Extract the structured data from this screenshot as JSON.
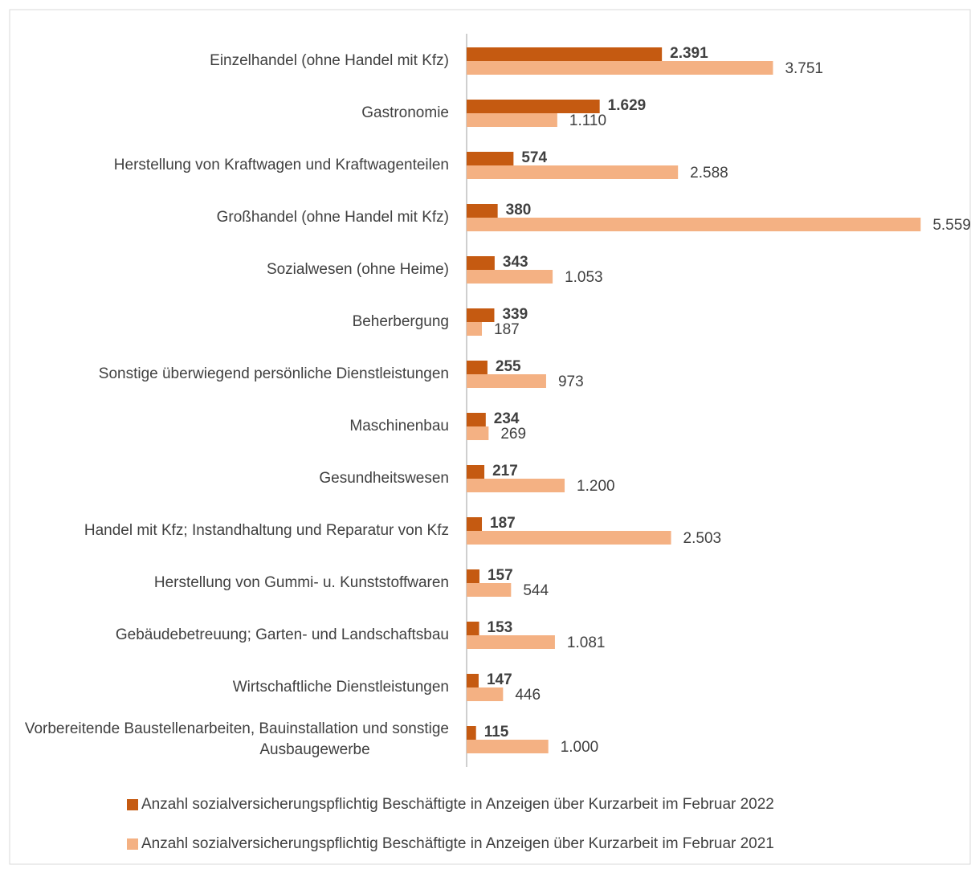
{
  "chart_data": {
    "type": "bar",
    "orientation": "horizontal",
    "categories": [
      "Einzelhandel (ohne Handel mit Kfz)",
      "Gastronomie",
      "Herstellung von Kraftwagen und Kraftwagenteilen",
      "Großhandel (ohne Handel mit Kfz)",
      "Sozialwesen (ohne Heime)",
      "Beherbergung",
      "Sonstige überwiegend persönliche Dienstleistungen",
      "Maschinenbau",
      "Gesundheitswesen",
      "Handel mit Kfz; Instandhaltung und Reparatur von Kfz",
      "Herstellung von Gummi- u. Kunststoffwaren",
      "Gebäudebetreuung; Garten- und Landschaftsbau",
      "Wirtschaftliche Dienstleistungen",
      "Vorbereitende Baustellenarbeiten, Bauinstallation und sonstige Ausbaugewerbe"
    ],
    "series": [
      {
        "name": "Anzahl sozialversicherungspflichtig Beschäftigte in Anzeigen über Kurzarbeit im Februar 2022",
        "color": "#c55a11",
        "values": [
          2391,
          1629,
          574,
          380,
          343,
          339,
          255,
          234,
          217,
          187,
          157,
          153,
          147,
          115
        ],
        "value_labels": [
          "2.391",
          "1.629",
          "574",
          "380",
          "343",
          "339",
          "255",
          "234",
          "217",
          "187",
          "157",
          "153",
          "147",
          "115"
        ]
      },
      {
        "name": "Anzahl sozialversicherungspflichtig Beschäftigte in Anzeigen über Kurzarbeit im Februar 2021",
        "color": "#f4b183",
        "values": [
          3751,
          1110,
          2588,
          5559,
          1053,
          187,
          973,
          269,
          1200,
          2503,
          544,
          1081,
          446,
          1000
        ],
        "value_labels": [
          "3.751",
          "1.110",
          "2.588",
          "5.559",
          "1.053",
          "187",
          "973",
          "269",
          "1.200",
          "2.503",
          "544",
          "1.081",
          "446",
          "1.000"
        ]
      }
    ],
    "xlim": [
      0,
      5900
    ],
    "legend": "bottom"
  }
}
